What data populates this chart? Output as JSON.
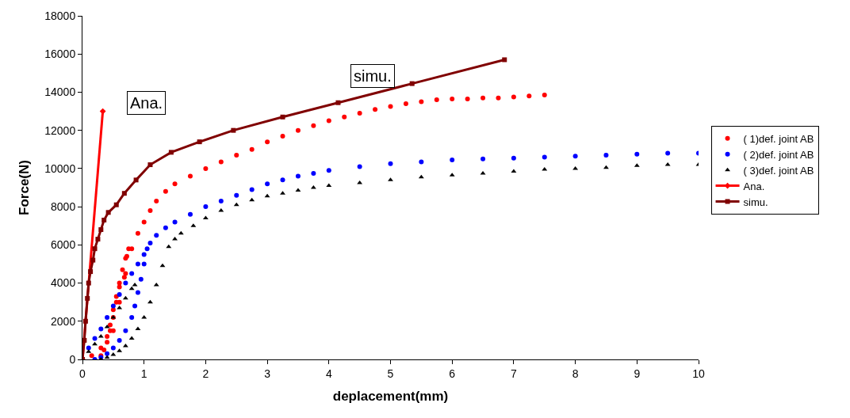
{
  "chart_data": {
    "type": "scatter",
    "xlabel": "deplacement(mm)",
    "ylabel": "Force(N)",
    "xlim": [
      0,
      10
    ],
    "ylim": [
      0,
      18000
    ],
    "xticks": [
      0,
      1,
      2,
      3,
      4,
      5,
      6,
      7,
      8,
      9,
      10
    ],
    "yticks": [
      0,
      2000,
      4000,
      6000,
      8000,
      10000,
      12000,
      14000,
      16000,
      18000
    ],
    "legend": "right",
    "series": [
      {
        "name": "( 1)def. joint AB",
        "color": "#ff0000",
        "marker": "circle",
        "x": [
          0.15,
          0.3,
          0.4,
          0.45,
          0.5,
          0.55,
          0.6,
          0.65,
          0.7,
          0.75,
          0.72,
          0.68,
          0.6,
          0.55,
          0.5,
          0.45,
          0.4,
          0.35,
          0.3,
          0.5,
          0.6,
          0.7,
          0.8,
          0.9,
          1.0,
          1.1,
          1.2,
          1.35,
          1.5,
          1.75,
          2.0,
          2.25,
          2.5,
          2.75,
          3.0,
          3.25,
          3.5,
          3.75,
          4.0,
          4.25,
          4.5,
          4.75,
          5.0,
          5.25,
          5.5,
          5.75,
          6.0,
          6.25,
          6.5,
          6.75,
          7.0,
          7.25,
          7.5
        ],
        "values": [
          200,
          600,
          1200,
          1800,
          2600,
          3300,
          4000,
          4700,
          5300,
          5800,
          5400,
          4300,
          3800,
          3000,
          2200,
          1500,
          900,
          500,
          200,
          1500,
          3000,
          4500,
          5800,
          6600,
          7200,
          7800,
          8300,
          8800,
          9200,
          9600,
          10000,
          10350,
          10700,
          11000,
          11400,
          11700,
          12000,
          12250,
          12500,
          12700,
          12900,
          13100,
          13250,
          13400,
          13500,
          13600,
          13650,
          13650,
          13700,
          13700,
          13750,
          13800,
          13850
        ]
      },
      {
        "name": "( 2)def. joint AB",
        "color": "#0000ff",
        "marker": "circle",
        "x": [
          0.1,
          0.2,
          0.3,
          0.4,
          0.5,
          0.6,
          0.7,
          0.8,
          0.9,
          1.0,
          1.05,
          1.0,
          0.95,
          0.9,
          0.85,
          0.8,
          0.7,
          0.6,
          0.5,
          0.4,
          0.3,
          0.2,
          1.1,
          1.2,
          1.35,
          1.5,
          1.75,
          2.0,
          2.25,
          2.5,
          2.75,
          3.0,
          3.25,
          3.5,
          3.75,
          4.0,
          4.5,
          5.0,
          5.5,
          6.0,
          6.5,
          7.0,
          7.5,
          8.0,
          8.5,
          9.0,
          9.5,
          10.0
        ],
        "values": [
          600,
          1100,
          1600,
          2200,
          2800,
          3400,
          4000,
          4500,
          5000,
          5500,
          5800,
          5000,
          4200,
          3500,
          2800,
          2200,
          1500,
          1000,
          600,
          300,
          100,
          0,
          6100,
          6500,
          6900,
          7200,
          7600,
          8000,
          8300,
          8600,
          8900,
          9200,
          9400,
          9600,
          9750,
          9900,
          10100,
          10250,
          10350,
          10450,
          10500,
          10550,
          10600,
          10650,
          10700,
          10750,
          10800,
          10800
        ]
      },
      {
        "name": "( 3)def. joint AB",
        "color": "#000000",
        "marker": "triangle",
        "x": [
          0.1,
          0.2,
          0.3,
          0.4,
          0.5,
          0.6,
          0.7,
          0.8,
          0.85,
          0.3,
          0.4,
          0.5,
          0.6,
          0.7,
          0.8,
          0.9,
          1.0,
          1.1,
          1.2,
          1.3,
          1.4,
          1.5,
          1.6,
          1.8,
          2.0,
          2.25,
          2.5,
          2.75,
          3.0,
          3.25,
          3.5,
          3.75,
          4.0,
          4.5,
          5.0,
          5.5,
          6.0,
          6.5,
          7.0,
          7.5,
          8.0,
          8.5,
          9.0,
          9.5,
          10.0
        ],
        "values": [
          400,
          800,
          1200,
          1700,
          2200,
          2700,
          3200,
          3700,
          3900,
          0,
          100,
          250,
          450,
          700,
          1100,
          1600,
          2200,
          3000,
          3900,
          4900,
          5900,
          6300,
          6600,
          7000,
          7400,
          7800,
          8100,
          8350,
          8550,
          8700,
          8850,
          9000,
          9100,
          9250,
          9400,
          9550,
          9650,
          9750,
          9850,
          9950,
          10000,
          10050,
          10150,
          10200,
          10200
        ]
      },
      {
        "name": "Ana.",
        "color": "#ff0000",
        "type": "line",
        "marker": "diamond",
        "x": [
          0,
          0.33
        ],
        "values": [
          0,
          13000
        ]
      },
      {
        "name": "simu.",
        "color": "#800000",
        "type": "line",
        "marker": "square",
        "x": [
          0,
          0.03,
          0.05,
          0.08,
          0.1,
          0.13,
          0.17,
          0.2,
          0.25,
          0.3,
          0.35,
          0.42,
          0.55,
          0.68,
          0.87,
          1.1,
          1.44,
          1.9,
          2.45,
          3.25,
          4.15,
          5.35,
          6.85
        ],
        "values": [
          0,
          1000,
          2000,
          3200,
          4000,
          4600,
          5200,
          5800,
          6300,
          6800,
          7300,
          7700,
          8100,
          8700,
          9400,
          10200,
          10850,
          11400,
          12000,
          12700,
          13450,
          14450,
          15700
        ]
      }
    ],
    "annotations": [
      "Ana.",
      "simu."
    ]
  }
}
